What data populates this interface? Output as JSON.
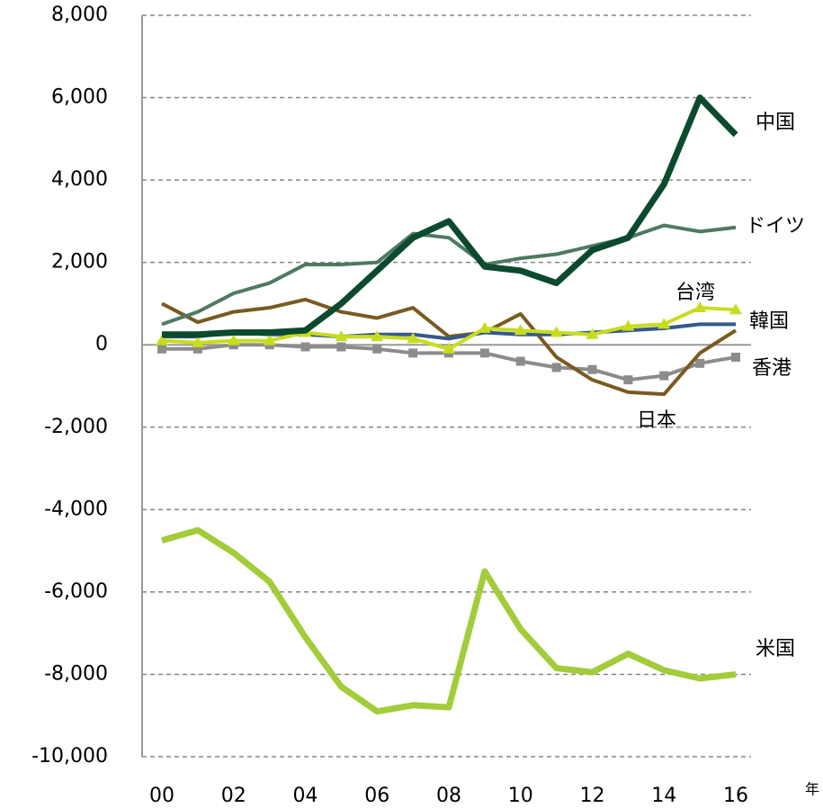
{
  "chart_data": {
    "type": "line",
    "categories": [
      "00",
      null,
      "02",
      null,
      "04",
      null,
      "06",
      null,
      "08",
      null,
      "10",
      null,
      "12",
      null,
      "14",
      null,
      "16"
    ],
    "x_label": "年",
    "ylim": [
      -10000,
      8000
    ],
    "yticks": [
      {
        "value": -10000,
        "label": "-10,000"
      },
      {
        "value": -8000,
        "label": "-8,000"
      },
      {
        "value": -6000,
        "label": "-6,000"
      },
      {
        "value": -4000,
        "label": "-4,000"
      },
      {
        "value": -2000,
        "label": "-2,000"
      },
      0,
      {
        "value": 2000,
        "label": "2,000"
      },
      {
        "value": 4000,
        "label": "4,000"
      },
      {
        "value": 6000,
        "label": "6,000"
      },
      {
        "value": 8000,
        "label": "8,000"
      }
    ],
    "grid": true,
    "series": [
      {
        "name": "米国",
        "color": "#a2cc3a",
        "width": 7,
        "marker": "none",
        "values": [
          -4750,
          -4500,
          -5050,
          -5750,
          -7100,
          -8300,
          -8900,
          -8750,
          -8800,
          -5500,
          -6900,
          -7850,
          -7950,
          -7500,
          -7900,
          -8100,
          -8000
        ]
      },
      {
        "name": "香港",
        "color": "#8c8c8c",
        "width": 4,
        "marker": "square",
        "values": [
          -100,
          -100,
          0,
          0,
          -50,
          -50,
          -100,
          -200,
          -200,
          -200,
          -400,
          -550,
          -600,
          -850,
          -750,
          -450,
          -300
        ]
      },
      {
        "name": "日本",
        "color": "#7a5a20",
        "width": 4,
        "marker": "none",
        "values": [
          1000,
          550,
          800,
          900,
          1100,
          800,
          650,
          900,
          200,
          300,
          750,
          -300,
          -850,
          -1150,
          -1200,
          -200,
          350
        ]
      },
      {
        "name": "韓国",
        "color": "#34598a",
        "width": 4,
        "marker": "none",
        "values": [
          200,
          200,
          300,
          250,
          250,
          200,
          250,
          250,
          150,
          300,
          250,
          250,
          300,
          350,
          400,
          500,
          500
        ]
      },
      {
        "name": "ドイツ",
        "color": "#4d7a63",
        "width": 4,
        "marker": "none",
        "values": [
          500,
          800,
          1250,
          1500,
          1950,
          1950,
          2000,
          2700,
          2600,
          1950,
          2100,
          2200,
          2400,
          2600,
          2900,
          2750,
          2850
        ]
      },
      {
        "name": "台湾",
        "color": "#c8dc1e",
        "width": 4,
        "marker": "triangle",
        "values": [
          100,
          50,
          100,
          100,
          300,
          200,
          200,
          150,
          -100,
          400,
          350,
          300,
          250,
          450,
          500,
          900,
          850
        ]
      },
      {
        "name": "中国",
        "color": "#0b4a2e",
        "width": 7,
        "marker": "none",
        "values": [
          250,
          250,
          300,
          300,
          350,
          1000,
          1800,
          2600,
          3000,
          1900,
          1800,
          1500,
          2300,
          2600,
          3900,
          6000,
          5100
        ]
      }
    ]
  }
}
